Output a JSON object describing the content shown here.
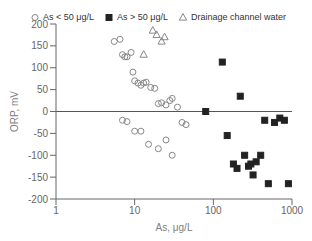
{
  "chart_data": {
    "type": "scatter",
    "xlabel": "As, μg/L",
    "ylabel": "ORP, mV",
    "log": "x",
    "xlim": [
      1,
      1000
    ],
    "xticks": [
      1,
      10,
      100,
      1000
    ],
    "ylim": [
      -200,
      200
    ],
    "yticks": [
      -200,
      -150,
      -100,
      -50,
      0,
      50,
      100,
      150,
      200
    ],
    "grid": false,
    "legend": "upper right",
    "series": [
      {
        "name": "As < 50 μg/L",
        "color": "#888888",
        "marker": "circle",
        "x": [
          5.5,
          6.5,
          7,
          7.5,
          8,
          9,
          9.5,
          10,
          11,
          12,
          13,
          14,
          16,
          18,
          20,
          22,
          25,
          28,
          30,
          35,
          40,
          45,
          7,
          8,
          10,
          12,
          15,
          20,
          25,
          30
        ],
        "values": [
          160,
          165,
          130,
          125,
          125,
          135,
          90,
          70,
          65,
          60,
          65,
          67,
          55,
          53,
          18,
          20,
          15,
          25,
          30,
          10,
          -25,
          -30,
          -20,
          -23,
          -45,
          -45,
          -75,
          -85,
          -65,
          -100
        ]
      },
      {
        "name": "As > 50 μg/L",
        "color": "#222222",
        "marker": "square",
        "x": [
          80,
          130,
          150,
          180,
          200,
          220,
          250,
          280,
          300,
          320,
          350,
          400,
          450,
          500,
          600,
          700,
          800,
          900
        ],
        "values": [
          0,
          113,
          -55,
          -120,
          -130,
          35,
          -100,
          -125,
          -120,
          -145,
          -115,
          -100,
          -20,
          -165,
          -25,
          -15,
          -20,
          -165
        ]
      },
      {
        "name": "Drainage channel water",
        "color": "#888888",
        "marker": "triangle",
        "x": [
          13,
          17,
          19,
          22,
          24
        ],
        "values": [
          130,
          185,
          175,
          160,
          170
        ]
      }
    ],
    "hline": {
      "y": 0,
      "color": "#555555"
    }
  }
}
